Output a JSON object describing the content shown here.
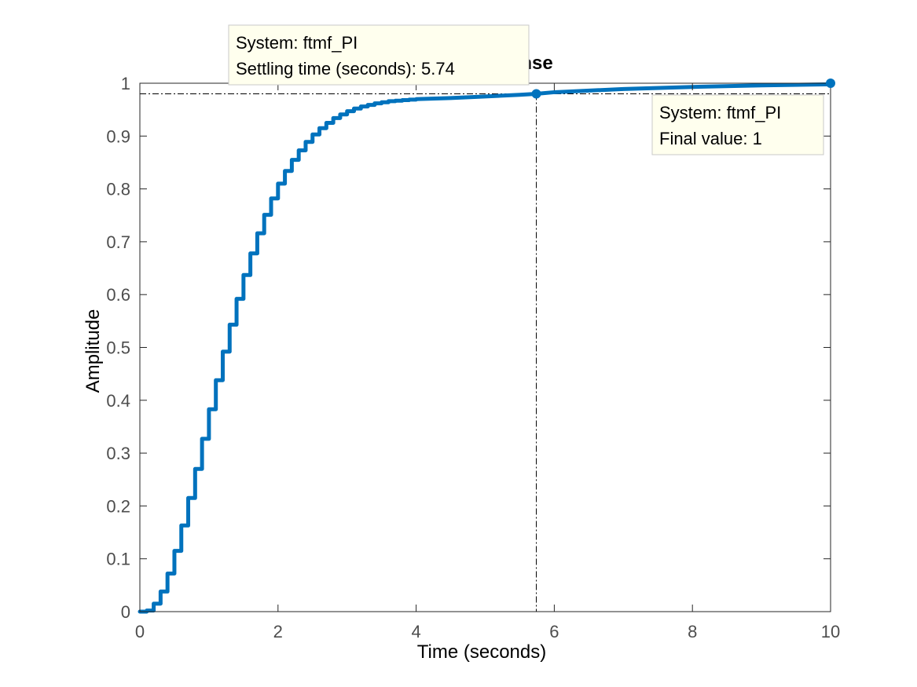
{
  "chart_data": {
    "type": "line",
    "title": "Step Response",
    "xlabel": "Time (seconds)",
    "ylabel": "Amplitude",
    "xlim": [
      0,
      10
    ],
    "ylim": [
      0,
      1
    ],
    "x_ticks": [
      0,
      2,
      4,
      6,
      8,
      10
    ],
    "y_ticks": [
      0,
      0.1,
      0.2,
      0.3,
      0.4,
      0.5,
      0.6,
      0.7,
      0.8,
      0.9,
      1
    ],
    "grid": false,
    "series": [
      {
        "color": "#0072bd",
        "style": "stairs",
        "x": [
          0,
          0.1,
          0.2,
          0.3,
          0.4,
          0.5,
          0.6,
          0.7,
          0.8,
          0.9,
          1.0,
          1.1,
          1.2,
          1.3,
          1.4,
          1.5,
          1.6,
          1.7,
          1.8,
          1.9,
          2.0,
          2.1,
          2.2,
          2.3,
          2.4,
          2.5,
          2.6,
          2.7,
          2.8,
          2.9,
          3.0,
          3.1,
          3.2,
          3.3,
          3.4,
          3.5,
          3.6,
          3.7,
          3.8,
          3.9,
          4.0,
          4.5,
          5.0,
          5.5,
          5.74,
          6.0,
          7.0,
          8.0,
          9.0,
          10.0
        ],
        "y": [
          0,
          0.002,
          0.015,
          0.038,
          0.072,
          0.115,
          0.163,
          0.215,
          0.27,
          0.327,
          0.383,
          0.438,
          0.492,
          0.543,
          0.592,
          0.637,
          0.678,
          0.716,
          0.751,
          0.782,
          0.81,
          0.834,
          0.855,
          0.873,
          0.889,
          0.903,
          0.915,
          0.925,
          0.934,
          0.941,
          0.947,
          0.952,
          0.956,
          0.959,
          0.962,
          0.964,
          0.966,
          0.967,
          0.968,
          0.969,
          0.97,
          0.972,
          0.975,
          0.978,
          0.98,
          0.983,
          0.989,
          0.993,
          0.996,
          0.998
        ]
      }
    ],
    "reference_lines": {
      "final_value": 1,
      "settling_band": 0.98,
      "settling_time": 5.74
    },
    "datatips": [
      {
        "line1": "System: ftmf_PI",
        "line2": "Settling time (seconds): 5.74",
        "x": 5.74,
        "y": 0.98
      },
      {
        "line1": "System: ftmf_PI",
        "line2": "Final value: 1",
        "x": 10,
        "y": 1
      }
    ]
  }
}
